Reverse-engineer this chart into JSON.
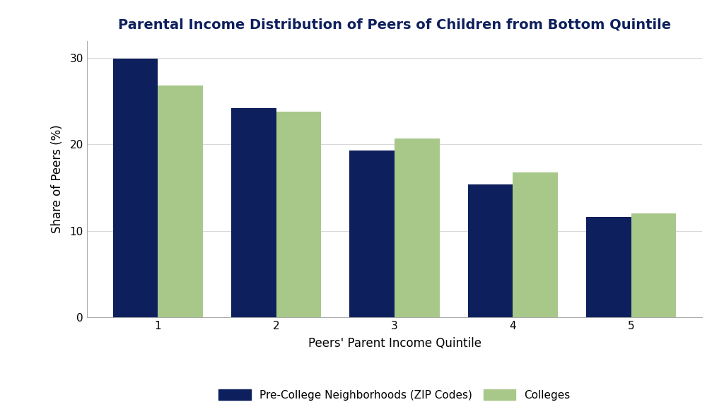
{
  "title": "Parental Income Distribution of Peers of Children from Bottom Quintile",
  "xlabel": "Peers' Parent Income Quintile",
  "ylabel": "Share of Peers (%)",
  "categories": [
    1,
    2,
    3,
    4,
    5
  ],
  "neighborhood_values": [
    29.9,
    24.2,
    19.3,
    15.4,
    11.6
  ],
  "college_values": [
    26.8,
    23.8,
    20.7,
    16.8,
    12.0
  ],
  "neighborhood_color": "#0d1f5c",
  "college_color": "#a8c88a",
  "ylim": [
    0,
    32
  ],
  "yticks": [
    0,
    10,
    20,
    30
  ],
  "bar_width": 0.38,
  "legend_labels": [
    "Pre-College Neighborhoods (ZIP Codes)",
    "Colleges"
  ],
  "background_color": "#ffffff",
  "title_fontsize": 14,
  "axis_label_fontsize": 12,
  "tick_fontsize": 11,
  "legend_fontsize": 11,
  "grid_color": "#d8d8d8",
  "spine_color": "#aaaaaa"
}
